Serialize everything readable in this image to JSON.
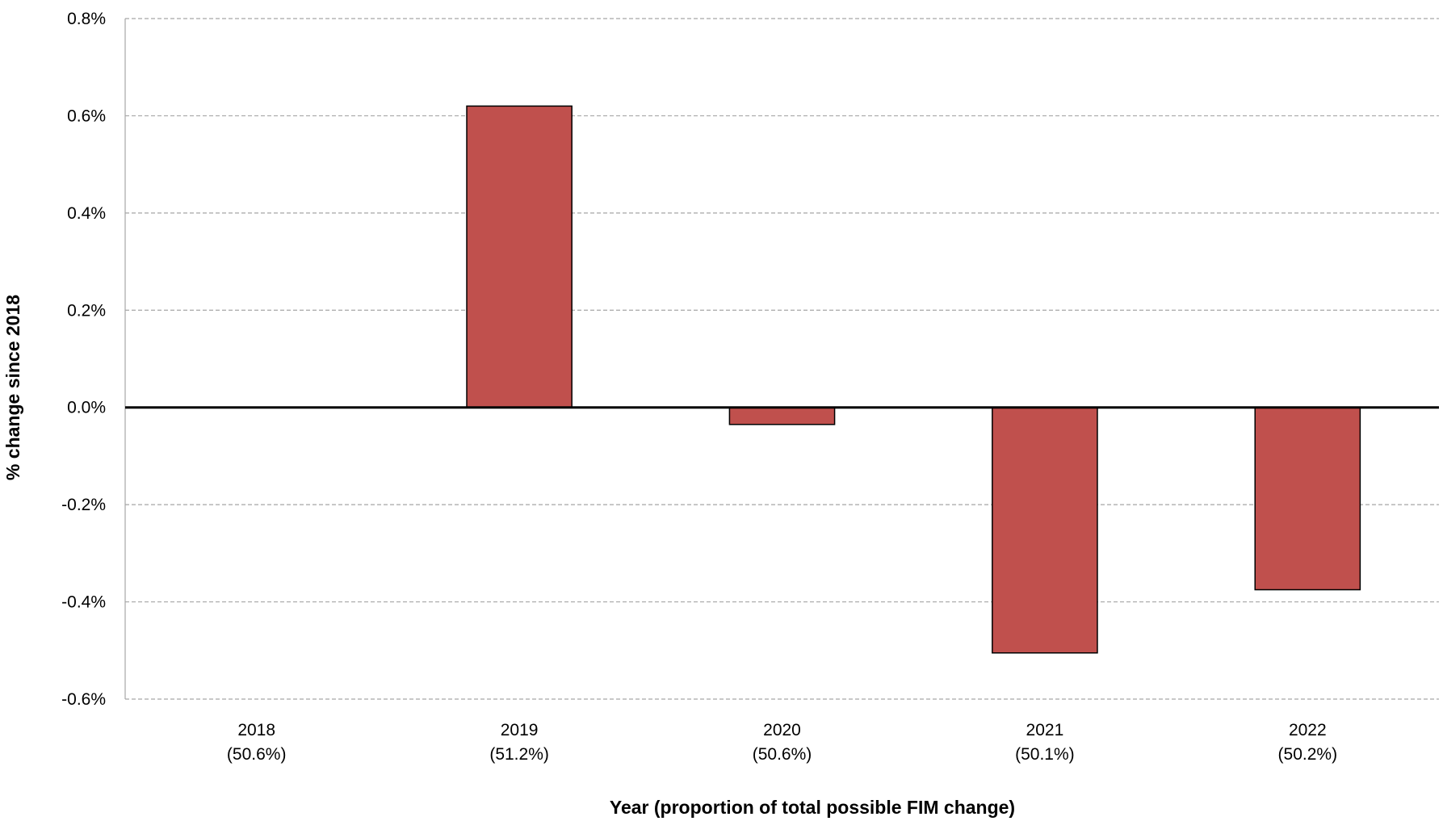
{
  "chart_data": {
    "type": "bar",
    "categories": [
      "2018",
      "2019",
      "2020",
      "2021",
      "2022"
    ],
    "category_sublabels": [
      "(50.6%)",
      "(51.2%)",
      "(50.6%)",
      "(50.1%)",
      "(50.2%)"
    ],
    "series": [
      {
        "values": [
          0.0,
          0.62,
          -0.035,
          -0.505,
          -0.375
        ]
      }
    ],
    "value_unit": "%",
    "xlabel": "Year (proportion of total possible FIM change)",
    "ylabel": "% change since 2018",
    "ylim": [
      -0.6,
      0.8
    ],
    "yticks": [
      0.8,
      0.6,
      0.4,
      0.2,
      0.0,
      -0.2,
      -0.4,
      -0.6
    ],
    "ytick_labels": [
      "0.8%",
      "0.6%",
      "0.4%",
      "0.2%",
      "0.0%",
      "-0.2%",
      "-0.4%",
      "-0.6%"
    ],
    "grid": true,
    "bar_color": "#c0504d",
    "legend": "none"
  }
}
